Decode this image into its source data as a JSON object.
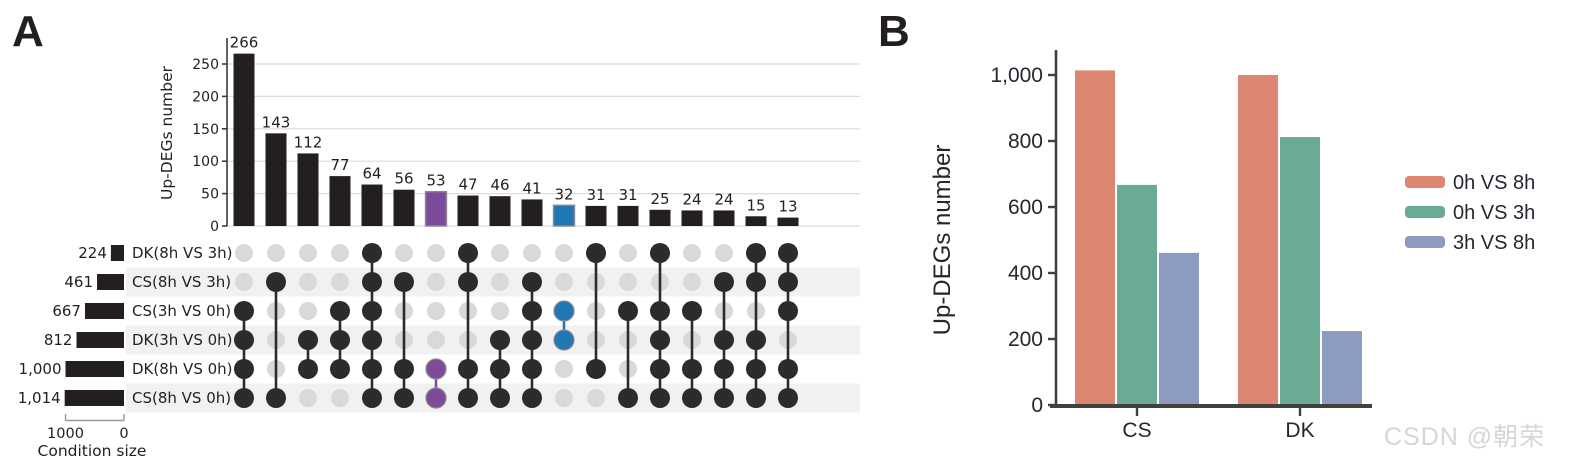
{
  "panel_a_label": "A",
  "panel_b_label": "B",
  "watermark": "CSDN @朝荣",
  "chart_data": [
    {
      "type": "bar",
      "name": "upset-intersection-plot",
      "ylabel": "Up-DEGs number",
      "ylim": [
        0,
        275
      ],
      "yticks": [
        0,
        50,
        100,
        150,
        200,
        250
      ],
      "grid": true,
      "bar_color": "#231f20",
      "inactive_dot_color": "#d9d9d9",
      "stripe_color": "#f1f1f1",
      "sets": [
        {
          "name": "DK(8h VS 3h)",
          "size": 224,
          "size_label": "224"
        },
        {
          "name": "CS(8h VS 3h)",
          "size": 461,
          "size_label": "461"
        },
        {
          "name": "CS(3h VS 0h)",
          "size": 667,
          "size_label": "667"
        },
        {
          "name": "DK(3h VS 0h)",
          "size": 812,
          "size_label": "812"
        },
        {
          "name": "DK(8h VS 0h)",
          "size": 1000,
          "size_label": "1,000"
        },
        {
          "name": "CS(8h VS 0h)",
          "size": 1014,
          "size_label": "1,014"
        }
      ],
      "size_axis": {
        "label": "Condition size",
        "tick_labels": [
          "1000",
          "0"
        ],
        "tick_values": [
          1000,
          0
        ]
      },
      "intersections": [
        {
          "value": 266,
          "label": "266",
          "rows": [
            2,
            3,
            4,
            5
          ]
        },
        {
          "value": 143,
          "label": "143",
          "rows": [
            1,
            5
          ]
        },
        {
          "value": 112,
          "label": "112",
          "rows": [
            3,
            4
          ]
        },
        {
          "value": 77,
          "label": "77",
          "rows": [
            2,
            3,
            4
          ]
        },
        {
          "value": 64,
          "label": "64",
          "rows": [
            0,
            1,
            2,
            3,
            4,
            5
          ]
        },
        {
          "value": 56,
          "label": "56",
          "rows": [
            1,
            4,
            5
          ]
        },
        {
          "value": 53,
          "label": "53",
          "rows": [
            4,
            5
          ],
          "color": "#7e4b9c"
        },
        {
          "value": 47,
          "label": "47",
          "rows": [
            0,
            1,
            4,
            5
          ]
        },
        {
          "value": 46,
          "label": "46",
          "rows": [
            3,
            4,
            5
          ]
        },
        {
          "value": 41,
          "label": "41",
          "rows": [
            1,
            2,
            3,
            4,
            5
          ]
        },
        {
          "value": 32,
          "label": "32",
          "rows": [
            2,
            3
          ],
          "color": "#2077b4"
        },
        {
          "value": 31,
          "label": "31",
          "rows": [
            0,
            4
          ]
        },
        {
          "value": 31,
          "label": "31",
          "rows": [
            2,
            5
          ]
        },
        {
          "value": 25,
          "label": "25",
          "rows": [
            0,
            2,
            3,
            4,
            5
          ]
        },
        {
          "value": 24,
          "label": "24",
          "rows": [
            2,
            4,
            5
          ]
        },
        {
          "value": 24,
          "label": "24",
          "rows": [
            1,
            3,
            4,
            5
          ]
        },
        {
          "value": 15,
          "label": "15",
          "rows": [
            0,
            1,
            3,
            4,
            5
          ]
        },
        {
          "value": 13,
          "label": "13",
          "rows": [
            0,
            1,
            2,
            4,
            5
          ]
        }
      ]
    },
    {
      "type": "bar",
      "name": "grouped-bar-chart",
      "categories": [
        "CS",
        "DK"
      ],
      "series": [
        {
          "name": "0h VS 8h",
          "color": "#dd8672",
          "values": [
            1014,
            1000
          ]
        },
        {
          "name": "0h VS 3h",
          "color": "#6bab93",
          "values": [
            667,
            812
          ]
        },
        {
          "name": "3h VS 8h",
          "color": "#8c9bbf",
          "values": [
            461,
            224
          ]
        }
      ],
      "ylabel": "Up-DEGs number",
      "ylim": [
        0,
        1080
      ],
      "yticks": [
        0,
        200,
        400,
        600,
        800,
        1000
      ],
      "ytick_labels": [
        "0",
        "200",
        "400",
        "600",
        "800",
        "1,000"
      ],
      "legend_position": "right",
      "axis_color": "#404040"
    }
  ]
}
